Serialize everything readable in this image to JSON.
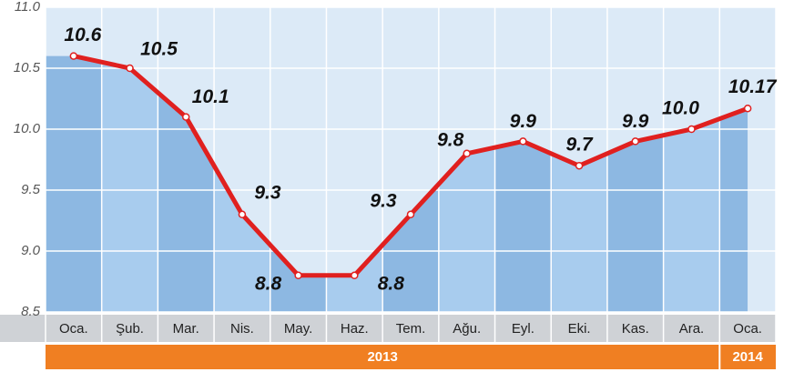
{
  "chart_data": {
    "type": "line",
    "categories": [
      "Oca.",
      "Şub.",
      "Mar.",
      "Nis.",
      "May.",
      "Haz.",
      "Tem.",
      "Ağu.",
      "Eyl.",
      "Eki.",
      "Kas.",
      "Ara.",
      "Oca."
    ],
    "groups": [
      "2013",
      "2014"
    ],
    "values": [
      10.6,
      10.5,
      10.1,
      9.3,
      8.8,
      8.8,
      9.3,
      9.8,
      9.9,
      9.7,
      9.9,
      10.0,
      10.17
    ],
    "value_labels": [
      "10.6",
      "10.5",
      "10.1",
      "9.3",
      "8.8",
      "8.8",
      "9.3",
      "9.8",
      "9.9",
      "9.7",
      "9.9",
      "10.0",
      "10.17"
    ],
    "color": "#e0201f",
    "ylim": [
      8.5,
      11.0
    ],
    "yticks": [
      8.5,
      {
        "value": 9.0,
        "label": "9.0"
      },
      9.5,
      {
        "value": 10.0,
        "label": "10.0"
      },
      10.5,
      {
        "value": 11.0,
        "label": "11.0"
      }
    ],
    "grid": true
  }
}
